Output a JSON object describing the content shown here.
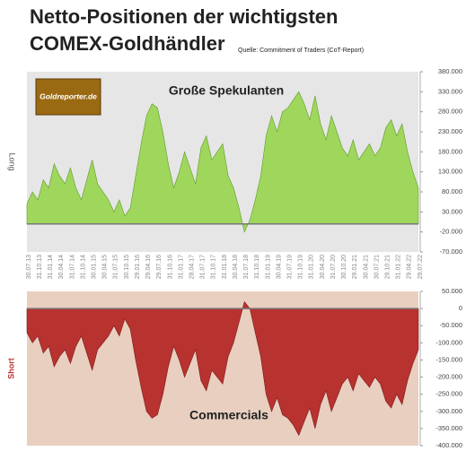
{
  "chart_data": [
    {
      "type": "area",
      "title_lines": [
        "Netto-Positionen der wichtigsten",
        "COMEX-Goldhändler"
      ],
      "source": "Quelle: Commitment of Traders (CoT-Report)",
      "logo_text": "Goldreporter.de",
      "annotation": "Große Spekulanten",
      "ylabel": "Long",
      "color": "#9fd65c",
      "edge": "#5f9a2c",
      "background": "#e6e6e6",
      "categories": [
        "30.07.13",
        null,
        "31.10.13",
        null,
        "31.01.14",
        null,
        "30.04.14",
        null,
        "31.07.14",
        null,
        "31.10.14",
        null,
        "30.01.15",
        null,
        "30.04.15",
        null,
        "31.07.15",
        null,
        "30.10.15",
        null,
        "29.01.16",
        null,
        "29.04.16",
        null,
        "29.07.16",
        null,
        "31.10.16",
        null,
        "31.01.17",
        null,
        "28.04.17",
        null,
        "31.07.17",
        null,
        "31.10.17",
        null,
        "31.01.18",
        null,
        "30.04.18",
        null,
        "31.07.18",
        null,
        "31.10.18",
        null,
        "31.01.19",
        null,
        "30.04.19",
        null,
        "31.07.19",
        null,
        "31.10.19",
        null,
        "31.01.20",
        null,
        "30.04.20",
        null,
        "31.07.20",
        null,
        "30.10.20",
        null,
        "29.01.21",
        null,
        "30.04.21",
        null,
        "30.07.21",
        null,
        "29.10.21",
        null,
        "31.01.22",
        null,
        "29.04.22",
        null,
        "29.07.22"
      ],
      "values": [
        50000,
        80000,
        60000,
        110000,
        90000,
        150000,
        120000,
        100000,
        140000,
        90000,
        60000,
        110000,
        160000,
        100000,
        80000,
        60000,
        30000,
        60000,
        20000,
        40000,
        120000,
        200000,
        270000,
        300000,
        290000,
        230000,
        150000,
        90000,
        130000,
        180000,
        140000,
        100000,
        190000,
        220000,
        160000,
        180000,
        200000,
        120000,
        90000,
        40000,
        -20000,
        10000,
        60000,
        120000,
        220000,
        270000,
        230000,
        280000,
        290000,
        310000,
        330000,
        300000,
        260000,
        320000,
        250000,
        210000,
        270000,
        230000,
        190000,
        170000,
        210000,
        160000,
        180000,
        200000,
        170000,
        190000,
        240000,
        260000,
        220000,
        250000,
        180000,
        130000,
        90000
      ],
      "ylim": [
        -70000,
        380000
      ],
      "yticks": [
        {
          "value": 380000,
          "label": "380.000"
        },
        {
          "value": 330000,
          "label": "330.000"
        },
        {
          "value": 280000,
          "label": "280.000"
        },
        {
          "value": 230000,
          "label": "230.000"
        },
        {
          "value": 180000,
          "label": "180.000"
        },
        {
          "value": 130000,
          "label": "130.000"
        },
        {
          "value": 80000,
          "label": "80.000"
        },
        {
          "value": 30000,
          "label": "30.000"
        },
        {
          "value": -20000,
          "label": "-20.000"
        },
        {
          "value": -70000,
          "label": "-70.000"
        }
      ]
    },
    {
      "type": "area",
      "annotation": "Commercials",
      "ylabel": "Short",
      "color": "#b83230",
      "edge": "#7a1a18",
      "background": "#e9cfc0",
      "values": [
        -70000,
        -100000,
        -80000,
        -130000,
        -110000,
        -170000,
        -140000,
        -120000,
        -160000,
        -110000,
        -80000,
        -130000,
        -180000,
        -120000,
        -100000,
        -80000,
        -50000,
        -80000,
        -30000,
        -60000,
        -150000,
        -230000,
        -300000,
        -320000,
        -310000,
        -250000,
        -170000,
        -110000,
        -150000,
        -200000,
        -160000,
        -120000,
        -210000,
        -240000,
        -180000,
        -200000,
        -220000,
        -140000,
        -100000,
        -40000,
        20000,
        0,
        -70000,
        -140000,
        -250000,
        -300000,
        -260000,
        -310000,
        -320000,
        -340000,
        -370000,
        -330000,
        -290000,
        -350000,
        -280000,
        -240000,
        -300000,
        -260000,
        -220000,
        -200000,
        -240000,
        -190000,
        -210000,
        -230000,
        -200000,
        -220000,
        -270000,
        -290000,
        -250000,
        -280000,
        -210000,
        -160000,
        -120000
      ],
      "ylim": [
        -400000,
        50000
      ],
      "yticks": [
        {
          "value": 50000,
          "label": "50.000"
        },
        0,
        {
          "value": -50000,
          "label": "-50.000"
        },
        {
          "value": -100000,
          "label": "-100.000"
        },
        {
          "value": -150000,
          "label": "-150.000"
        },
        {
          "value": -200000,
          "label": "-200.000"
        },
        {
          "value": -250000,
          "label": "-250.000"
        },
        {
          "value": -300000,
          "label": "-300.000"
        },
        {
          "value": -350000,
          "label": "-350.000"
        },
        {
          "value": -400000,
          "label": "-400.000"
        }
      ]
    }
  ]
}
